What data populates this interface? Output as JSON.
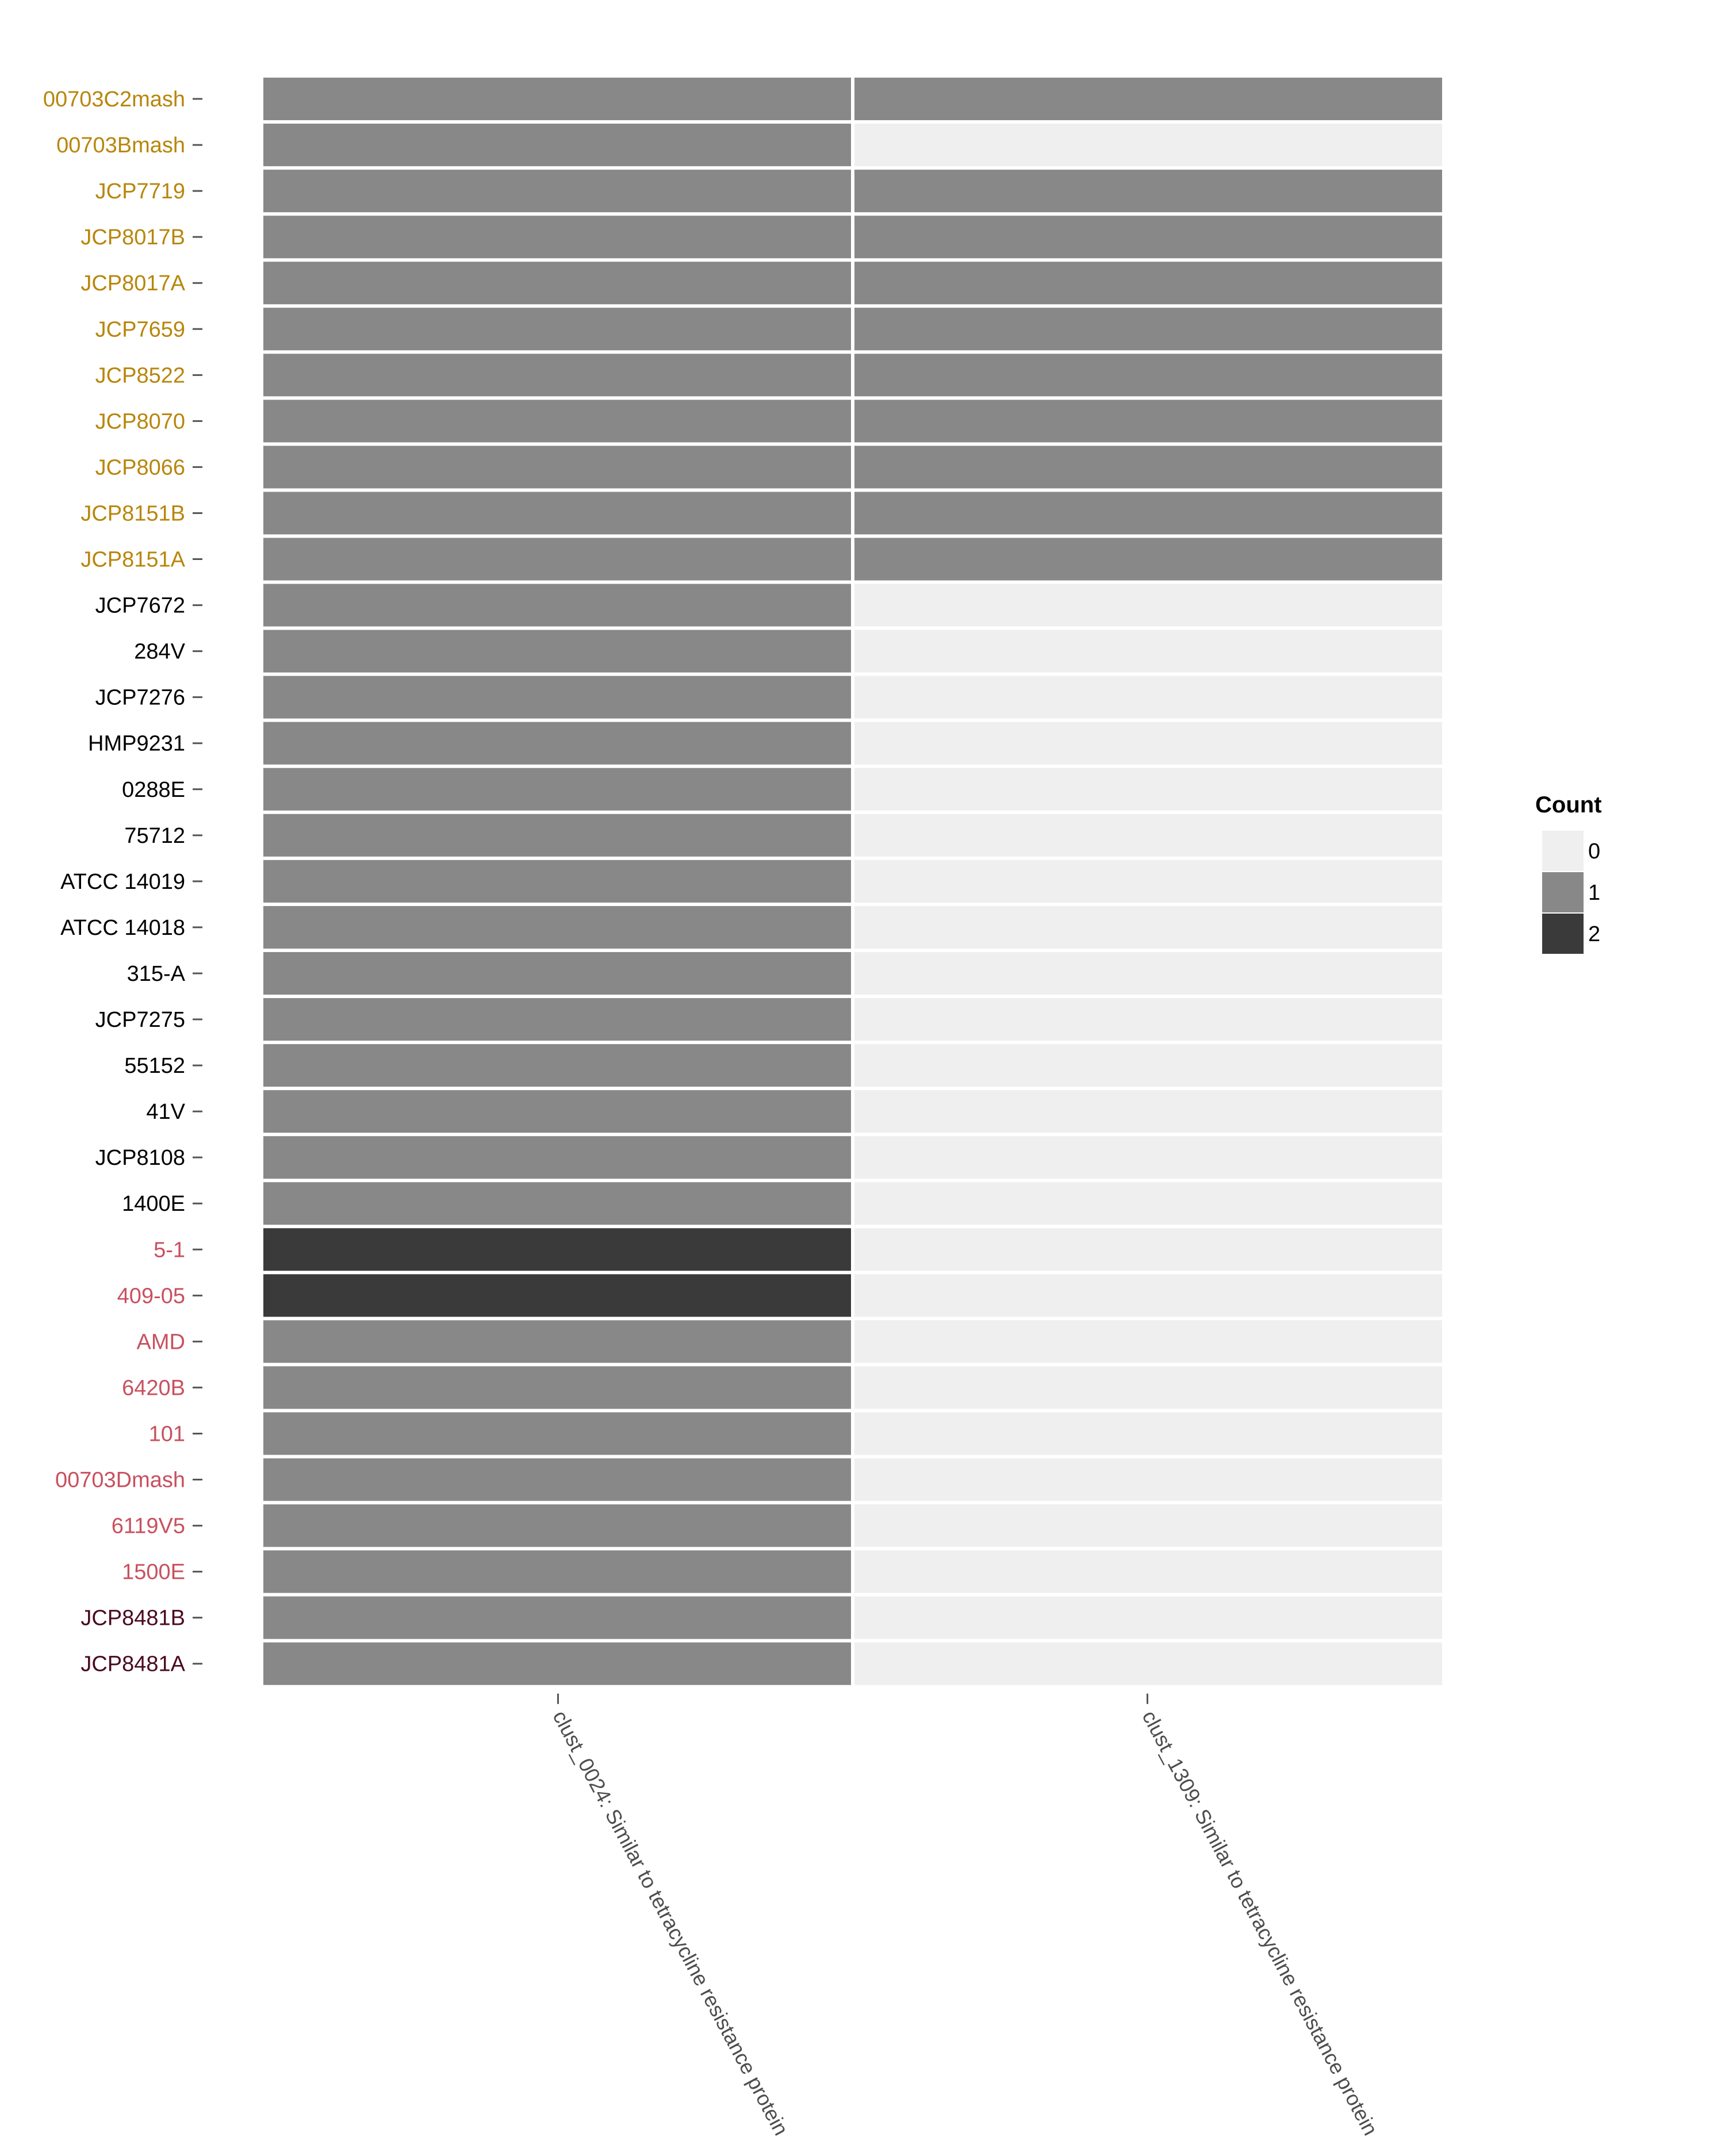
{
  "chart_data": {
    "type": "heatmap",
    "title": "",
    "xlabel": "",
    "ylabel": "",
    "columns": [
      "clust_0024: Similar to tetracycline resistance protein",
      "clust_1309: Similar to tetracycline resistance protein"
    ],
    "rows": [
      {
        "label": "00703C2mash",
        "group": "gold",
        "values": [
          1,
          1
        ]
      },
      {
        "label": "00703Bmash",
        "group": "gold",
        "values": [
          1,
          0
        ]
      },
      {
        "label": "JCP7719",
        "group": "gold",
        "values": [
          1,
          1
        ]
      },
      {
        "label": "JCP8017B",
        "group": "gold",
        "values": [
          1,
          1
        ]
      },
      {
        "label": "JCP8017A",
        "group": "gold",
        "values": [
          1,
          1
        ]
      },
      {
        "label": "JCP7659",
        "group": "gold",
        "values": [
          1,
          1
        ]
      },
      {
        "label": "JCP8522",
        "group": "gold",
        "values": [
          1,
          1
        ]
      },
      {
        "label": "JCP8070",
        "group": "gold",
        "values": [
          1,
          1
        ]
      },
      {
        "label": "JCP8066",
        "group": "gold",
        "values": [
          1,
          1
        ]
      },
      {
        "label": "JCP8151B",
        "group": "gold",
        "values": [
          1,
          1
        ]
      },
      {
        "label": "JCP8151A",
        "group": "gold",
        "values": [
          1,
          1
        ]
      },
      {
        "label": "JCP7672",
        "group": "black",
        "values": [
          1,
          0
        ]
      },
      {
        "label": "284V",
        "group": "black",
        "values": [
          1,
          0
        ]
      },
      {
        "label": "JCP7276",
        "group": "black",
        "values": [
          1,
          0
        ]
      },
      {
        "label": "HMP9231",
        "group": "black",
        "values": [
          1,
          0
        ]
      },
      {
        "label": "0288E",
        "group": "black",
        "values": [
          1,
          0
        ]
      },
      {
        "label": "75712",
        "group": "black",
        "values": [
          1,
          0
        ]
      },
      {
        "label": "ATCC 14019",
        "group": "black",
        "values": [
          1,
          0
        ]
      },
      {
        "label": "ATCC 14018",
        "group": "black",
        "values": [
          1,
          0
        ]
      },
      {
        "label": "315-A",
        "group": "black",
        "values": [
          1,
          0
        ]
      },
      {
        "label": "JCP7275",
        "group": "black",
        "values": [
          1,
          0
        ]
      },
      {
        "label": "55152",
        "group": "black",
        "values": [
          1,
          0
        ]
      },
      {
        "label": "41V",
        "group": "black",
        "values": [
          1,
          0
        ]
      },
      {
        "label": "JCP8108",
        "group": "black",
        "values": [
          1,
          0
        ]
      },
      {
        "label": "1400E",
        "group": "black",
        "values": [
          1,
          0
        ]
      },
      {
        "label": "5-1",
        "group": "pink",
        "values": [
          2,
          0
        ]
      },
      {
        "label": "409-05",
        "group": "pink",
        "values": [
          2,
          0
        ]
      },
      {
        "label": "AMD",
        "group": "pink",
        "values": [
          1,
          0
        ]
      },
      {
        "label": "6420B",
        "group": "pink",
        "values": [
          1,
          0
        ]
      },
      {
        "label": "101",
        "group": "pink",
        "values": [
          1,
          0
        ]
      },
      {
        "label": "00703Dmash",
        "group": "pink",
        "values": [
          1,
          0
        ]
      },
      {
        "label": "6119V5",
        "group": "pink",
        "values": [
          1,
          0
        ]
      },
      {
        "label": "1500E",
        "group": "pink",
        "values": [
          1,
          0
        ]
      },
      {
        "label": "JCP8481B",
        "group": "maroon",
        "values": [
          1,
          0
        ]
      },
      {
        "label": "JCP8481A",
        "group": "maroon",
        "values": [
          1,
          0
        ]
      }
    ],
    "group_colors": {
      "gold": "#b8860b",
      "black": "#000000",
      "pink": "#c8505f",
      "maroon": "#4a0a1e"
    },
    "fill_scale": [
      {
        "value": 0,
        "color": "#efefef"
      },
      {
        "value": 1,
        "color": "#888888"
      },
      {
        "value": 2,
        "color": "#3a3a3a"
      }
    ],
    "legend": {
      "title": "Count",
      "position": "right",
      "labels": [
        "0",
        "1",
        "2"
      ]
    },
    "grid": false
  }
}
